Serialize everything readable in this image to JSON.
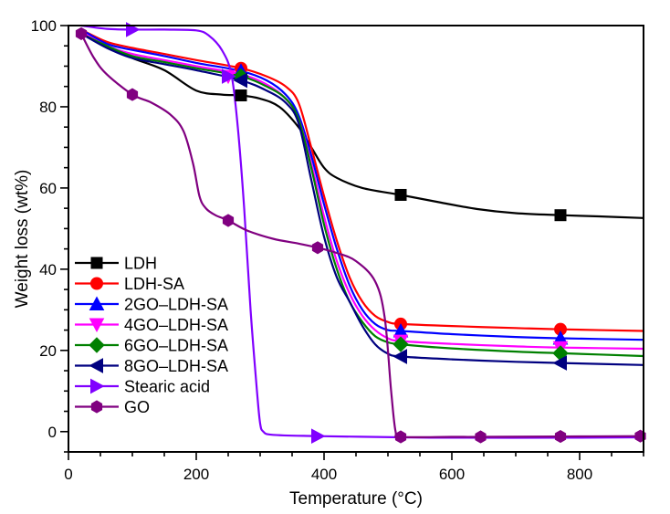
{
  "chart_data": {
    "type": "line",
    "title": "",
    "xlabel": "Temperature (°C)",
    "ylabel": "Weight loss (wt%)",
    "xlim": [
      0,
      900
    ],
    "ylim": [
      -5,
      100
    ],
    "xticks": [
      0,
      200,
      400,
      600,
      800
    ],
    "yticks": [
      0,
      20,
      40,
      60,
      80,
      100
    ],
    "grid": false,
    "legend_position": "bottom-left",
    "series": [
      {
        "name": "LDH",
        "color": "#000000",
        "marker": "square",
        "points": [
          [
            20,
            98
          ],
          [
            60,
            95
          ],
          [
            100,
            92
          ],
          [
            150,
            89
          ],
          [
            200,
            84
          ],
          [
            240,
            83
          ],
          [
            270,
            82.8
          ],
          [
            300,
            82
          ],
          [
            330,
            80
          ],
          [
            360,
            75
          ],
          [
            380,
            70
          ],
          [
            400,
            65
          ],
          [
            420,
            62.5
          ],
          [
            460,
            60
          ],
          [
            520,
            58.3
          ],
          [
            580,
            56.5
          ],
          [
            640,
            54.8
          ],
          [
            700,
            53.8
          ],
          [
            770,
            53.3
          ],
          [
            830,
            53
          ],
          [
            900,
            52.6
          ]
        ],
        "markers": [
          [
            270,
            82.8
          ],
          [
            520,
            58.3
          ],
          [
            770,
            53.3
          ]
        ]
      },
      {
        "name": "LDH-SA",
        "color": "#ff0000",
        "marker": "circle",
        "points": [
          [
            20,
            99
          ],
          [
            60,
            96
          ],
          [
            100,
            94.5
          ],
          [
            150,
            93
          ],
          [
            200,
            91.5
          ],
          [
            270,
            89.5
          ],
          [
            310,
            87.5
          ],
          [
            340,
            85
          ],
          [
            360,
            81
          ],
          [
            380,
            70
          ],
          [
            400,
            58
          ],
          [
            420,
            47
          ],
          [
            440,
            38
          ],
          [
            460,
            32
          ],
          [
            480,
            28.5
          ],
          [
            500,
            27
          ],
          [
            520,
            26.5
          ],
          [
            600,
            26
          ],
          [
            700,
            25.5
          ],
          [
            770,
            25.2
          ],
          [
            900,
            24.8
          ]
        ],
        "markers": [
          [
            270,
            89.5
          ],
          [
            520,
            26.5
          ],
          [
            770,
            25.2
          ]
        ]
      },
      {
        "name": "2GO–LDH-SA",
        "color": "#0000ff",
        "marker": "triangle-up",
        "points": [
          [
            20,
            99
          ],
          [
            60,
            95.5
          ],
          [
            100,
            94
          ],
          [
            150,
            92.5
          ],
          [
            200,
            90.8
          ],
          [
            270,
            88.8
          ],
          [
            310,
            86.5
          ],
          [
            340,
            83
          ],
          [
            360,
            78
          ],
          [
            380,
            68
          ],
          [
            400,
            56
          ],
          [
            420,
            45
          ],
          [
            440,
            36
          ],
          [
            460,
            30
          ],
          [
            480,
            26.5
          ],
          [
            500,
            25
          ],
          [
            520,
            24.8
          ],
          [
            600,
            24
          ],
          [
            700,
            23.3
          ],
          [
            770,
            23
          ],
          [
            900,
            22.6
          ]
        ],
        "markers": [
          [
            270,
            88.8
          ],
          [
            520,
            24.8
          ],
          [
            770,
            23
          ]
        ]
      },
      {
        "name": "4GO–LDH-SA",
        "color": "#ff00ff",
        "marker": "triangle-down",
        "points": [
          [
            20,
            98.5
          ],
          [
            60,
            95
          ],
          [
            100,
            93
          ],
          [
            150,
            91.5
          ],
          [
            200,
            90
          ],
          [
            270,
            88
          ],
          [
            310,
            85.5
          ],
          [
            340,
            82
          ],
          [
            360,
            77
          ],
          [
            380,
            66
          ],
          [
            400,
            53
          ],
          [
            420,
            42
          ],
          [
            440,
            34
          ],
          [
            460,
            28.5
          ],
          [
            480,
            25
          ],
          [
            500,
            23
          ],
          [
            520,
            22.3
          ],
          [
            600,
            21.6
          ],
          [
            700,
            21
          ],
          [
            770,
            20.7
          ],
          [
            900,
            20.4
          ]
        ],
        "markers": [
          [
            250,
            87.5
          ],
          [
            520,
            22.3
          ],
          [
            770,
            20.7
          ]
        ]
      },
      {
        "name": "6GO–LDH-SA",
        "color": "#008000",
        "marker": "diamond",
        "points": [
          [
            20,
            98
          ],
          [
            60,
            95
          ],
          [
            100,
            92.5
          ],
          [
            150,
            91
          ],
          [
            200,
            89.5
          ],
          [
            270,
            87.5
          ],
          [
            310,
            85
          ],
          [
            340,
            82
          ],
          [
            360,
            77
          ],
          [
            380,
            65
          ],
          [
            400,
            51
          ],
          [
            420,
            40
          ],
          [
            440,
            32
          ],
          [
            460,
            27
          ],
          [
            480,
            23.5
          ],
          [
            500,
            22
          ],
          [
            520,
            21.5
          ],
          [
            600,
            20.5
          ],
          [
            700,
            19.7
          ],
          [
            770,
            19.3
          ],
          [
            900,
            18.6
          ]
        ],
        "markers": [
          [
            270,
            87.5
          ],
          [
            520,
            21.5
          ],
          [
            770,
            19.3
          ]
        ]
      },
      {
        "name": "8GO–LDH-SA",
        "color": "#000080",
        "marker": "triangle-left",
        "points": [
          [
            20,
            98
          ],
          [
            60,
            94.5
          ],
          [
            100,
            92
          ],
          [
            150,
            90.5
          ],
          [
            200,
            89
          ],
          [
            270,
            86.5
          ],
          [
            310,
            84
          ],
          [
            340,
            81
          ],
          [
            360,
            76
          ],
          [
            380,
            62
          ],
          [
            400,
            48
          ],
          [
            420,
            38
          ],
          [
            440,
            32
          ],
          [
            460,
            26
          ],
          [
            480,
            21.5
          ],
          [
            500,
            19.2
          ],
          [
            520,
            18.5
          ],
          [
            600,
            17.8
          ],
          [
            700,
            17.2
          ],
          [
            770,
            16.9
          ],
          [
            900,
            16.4
          ]
        ],
        "markers": [
          [
            270,
            86.5
          ],
          [
            520,
            18.5
          ],
          [
            770,
            16.9
          ]
        ]
      },
      {
        "name": "Stearic acid",
        "color": "#8000ff",
        "marker": "triangle-right",
        "points": [
          [
            20,
            100
          ],
          [
            60,
            99.2
          ],
          [
            100,
            99
          ],
          [
            150,
            99
          ],
          [
            200,
            98.8
          ],
          [
            220,
            97.5
          ],
          [
            240,
            94
          ],
          [
            255,
            88
          ],
          [
            265,
            75
          ],
          [
            275,
            55
          ],
          [
            285,
            30
          ],
          [
            295,
            10
          ],
          [
            300,
            2
          ],
          [
            305,
            0
          ],
          [
            320,
            -0.8
          ],
          [
            390,
            -1.1
          ],
          [
            520,
            -1.4
          ],
          [
            600,
            -1.5
          ],
          [
            770,
            -1.5
          ],
          [
            900,
            -1.4
          ]
        ],
        "markers": [
          [
            100,
            99
          ],
          [
            250,
            87.5
          ],
          [
            390,
            -1.1
          ]
        ]
      },
      {
        "name": "GO",
        "color": "#800080",
        "marker": "hexagon",
        "points": [
          [
            20,
            98
          ],
          [
            40,
            92
          ],
          [
            60,
            88
          ],
          [
            100,
            83
          ],
          [
            130,
            81
          ],
          [
            160,
            78
          ],
          [
            180,
            74
          ],
          [
            195,
            66
          ],
          [
            205,
            58
          ],
          [
            215,
            55
          ],
          [
            230,
            53.3
          ],
          [
            250,
            52
          ],
          [
            280,
            49.5
          ],
          [
            320,
            47.5
          ],
          [
            360,
            46.3
          ],
          [
            390,
            45.3
          ],
          [
            420,
            44
          ],
          [
            450,
            42
          ],
          [
            480,
            37
          ],
          [
            495,
            28
          ],
          [
            505,
            10
          ],
          [
            512,
            0
          ],
          [
            520,
            -1.3
          ],
          [
            600,
            -1.3
          ],
          [
            645,
            -1.3
          ],
          [
            770,
            -1.2
          ],
          [
            900,
            -1.1
          ]
        ],
        "markers": [
          [
            20,
            98
          ],
          [
            100,
            83
          ],
          [
            250,
            52
          ],
          [
            390,
            45.3
          ],
          [
            520,
            -1.3
          ],
          [
            645,
            -1.3
          ],
          [
            770,
            -1.2
          ],
          [
            895,
            -1.1
          ]
        ]
      }
    ]
  }
}
